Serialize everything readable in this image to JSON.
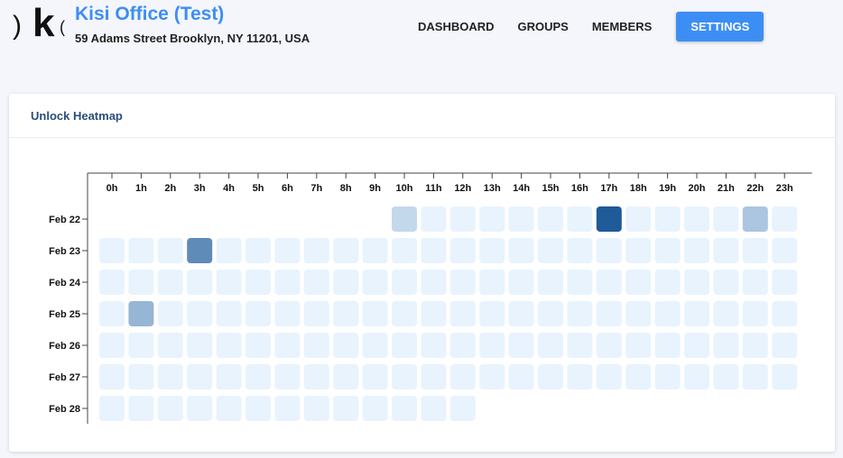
{
  "header": {
    "org_title": "Kisi Office (Test)",
    "org_address": "59 Adams Street Brooklyn, NY 11201, USA"
  },
  "nav": {
    "items": [
      {
        "label": "DASHBOARD",
        "active": false
      },
      {
        "label": "GROUPS",
        "active": false
      },
      {
        "label": "MEMBERS",
        "active": false
      },
      {
        "label": "SETTINGS",
        "active": true
      }
    ]
  },
  "card": {
    "title": "Unlock Heatmap"
  },
  "colors": {
    "accent": "#3d8ef4",
    "empty_cell": "#e8f3fe"
  },
  "chart_data": {
    "type": "heatmap",
    "title": "Unlock Heatmap",
    "x": [
      "0h",
      "1h",
      "2h",
      "3h",
      "4h",
      "5h",
      "6h",
      "7h",
      "8h",
      "9h",
      "10h",
      "11h",
      "12h",
      "13h",
      "14h",
      "15h",
      "16h",
      "17h",
      "18h",
      "19h",
      "20h",
      "21h",
      "22h",
      "23h"
    ],
    "y": [
      "Feb 22",
      "Feb 23",
      "Feb 24",
      "Feb 25",
      "Feb 26",
      "Feb 27",
      "Feb 28"
    ],
    "values": [
      [
        null,
        null,
        null,
        null,
        null,
        null,
        null,
        null,
        null,
        null,
        1,
        0,
        0,
        0,
        0,
        0,
        0,
        10,
        0,
        0,
        0,
        0,
        2,
        0
      ],
      [
        0,
        0,
        0,
        6,
        0,
        0,
        0,
        0,
        0,
        0,
        0,
        0,
        0,
        0,
        0,
        0,
        0,
        0,
        0,
        0,
        0,
        0,
        0,
        0
      ],
      [
        0,
        0,
        0,
        0,
        0,
        0,
        0,
        0,
        0,
        0,
        0,
        0,
        0,
        0,
        0,
        0,
        0,
        0,
        0,
        0,
        0,
        0,
        0,
        0
      ],
      [
        0,
        3,
        0,
        0,
        0,
        0,
        0,
        0,
        0,
        0,
        0,
        0,
        0,
        0,
        0,
        0,
        0,
        0,
        0,
        0,
        0,
        0,
        0,
        0
      ],
      [
        0,
        0,
        0,
        0,
        0,
        0,
        0,
        0,
        0,
        0,
        0,
        0,
        0,
        0,
        0,
        0,
        0,
        0,
        0,
        0,
        0,
        0,
        0,
        0
      ],
      [
        0,
        0,
        0,
        0,
        0,
        0,
        0,
        0,
        0,
        0,
        0,
        0,
        0,
        0,
        0,
        0,
        0,
        0,
        0,
        0,
        0,
        0,
        0,
        0
      ],
      [
        0,
        0,
        0,
        0,
        0,
        0,
        0,
        0,
        0,
        0,
        0,
        0,
        0,
        null,
        null,
        null,
        null,
        null,
        null,
        null,
        null,
        null,
        null,
        null
      ]
    ],
    "color_scale": [
      "#e8f3fe",
      "#1f5a99"
    ]
  }
}
